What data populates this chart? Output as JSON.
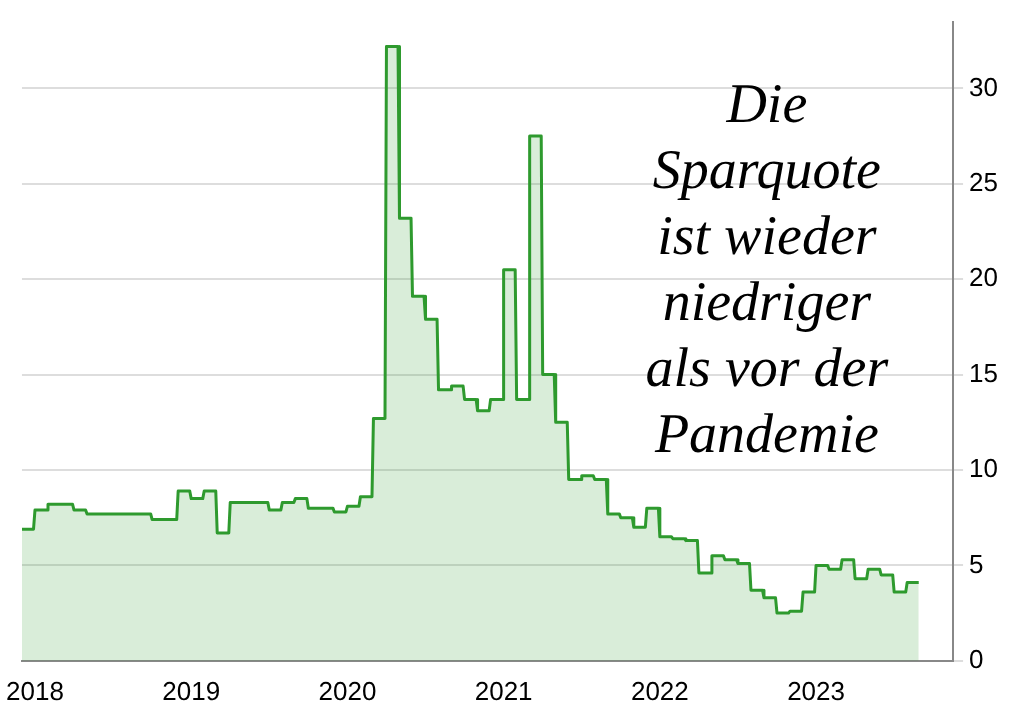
{
  "chart_data": {
    "type": "area",
    "x": [
      "2017-12-01",
      "2017-12-28",
      "2018-01-01",
      "2018-01-28",
      "2018-02-01",
      "2018-02-28",
      "2018-03-01",
      "2018-03-28",
      "2018-04-01",
      "2018-04-28",
      "2018-05-01",
      "2018-05-28",
      "2018-06-01",
      "2018-06-28",
      "2018-07-01",
      "2018-07-28",
      "2018-08-01",
      "2018-08-28",
      "2018-09-01",
      "2018-09-28",
      "2018-10-01",
      "2018-10-28",
      "2018-11-01",
      "2018-11-28",
      "2018-12-01",
      "2018-12-28",
      "2019-01-01",
      "2019-01-28",
      "2019-02-01",
      "2019-02-28",
      "2019-03-01",
      "2019-03-28",
      "2019-04-01",
      "2019-04-28",
      "2019-05-01",
      "2019-05-28",
      "2019-06-01",
      "2019-06-28",
      "2019-07-01",
      "2019-07-28",
      "2019-08-01",
      "2019-08-28",
      "2019-09-01",
      "2019-09-28",
      "2019-10-01",
      "2019-10-28",
      "2019-11-01",
      "2019-11-28",
      "2019-12-01",
      "2019-12-28",
      "2020-01-01",
      "2020-01-28",
      "2020-02-01",
      "2020-02-28",
      "2020-03-01",
      "2020-03-28",
      "2020-04-01",
      "2020-04-28",
      "2020-05-01",
      "2020-05-28",
      "2020-06-01",
      "2020-06-28",
      "2020-07-01",
      "2020-07-28",
      "2020-08-01",
      "2020-08-28",
      "2020-09-01",
      "2020-09-28",
      "2020-10-01",
      "2020-10-28",
      "2020-11-01",
      "2020-11-28",
      "2020-12-01",
      "2020-12-28",
      "2021-01-01",
      "2021-01-28",
      "2021-02-01",
      "2021-02-28",
      "2021-03-01",
      "2021-03-28",
      "2021-04-01",
      "2021-04-28",
      "2021-05-01",
      "2021-05-28",
      "2021-06-01",
      "2021-06-28",
      "2021-07-01",
      "2021-07-28",
      "2021-08-01",
      "2021-08-28",
      "2021-09-01",
      "2021-09-28",
      "2021-10-01",
      "2021-10-28",
      "2021-11-01",
      "2021-11-28",
      "2021-12-01",
      "2021-12-28",
      "2022-01-01",
      "2022-01-28",
      "2022-02-01",
      "2022-02-28",
      "2022-03-01",
      "2022-03-28",
      "2022-04-01",
      "2022-04-28",
      "2022-05-01",
      "2022-05-28",
      "2022-06-01",
      "2022-06-28",
      "2022-07-01",
      "2022-07-28",
      "2022-08-01",
      "2022-08-28",
      "2022-09-01",
      "2022-09-28",
      "2022-10-01",
      "2022-10-28",
      "2022-11-01",
      "2022-11-28",
      "2022-12-01",
      "2022-12-28",
      "2023-01-01",
      "2023-01-28",
      "2023-02-01",
      "2023-02-28",
      "2023-03-01",
      "2023-03-28",
      "2023-04-01",
      "2023-04-28",
      "2023-05-01",
      "2023-05-28",
      "2023-06-01",
      "2023-06-28",
      "2023-07-01",
      "2023-07-28",
      "2023-08-01",
      "2023-08-28"
    ],
    "series": [
      {
        "color": "#2e9a2e",
        "values": [
          6.9,
          6.9,
          7.9,
          7.9,
          8.2,
          8.2,
          8.2,
          8.2,
          7.9,
          7.9,
          7.7,
          7.7,
          7.7,
          7.7,
          7.7,
          7.7,
          7.7,
          7.7,
          7.7,
          7.7,
          7.4,
          7.4,
          7.4,
          7.4,
          8.9,
          8.9,
          8.5,
          8.5,
          8.9,
          8.9,
          6.7,
          6.7,
          8.3,
          8.3,
          8.3,
          8.3,
          8.3,
          8.3,
          7.9,
          7.9,
          8.3,
          8.3,
          8.5,
          8.5,
          8.0,
          8.0,
          8.0,
          8.0,
          7.8,
          7.8,
          8.1,
          8.1,
          8.6,
          8.6,
          12.7,
          12.7,
          32.2,
          32.2,
          23.2,
          23.2,
          19.1,
          19.1,
          17.9,
          17.9,
          14.2,
          14.2,
          14.4,
          14.4,
          13.7,
          13.7,
          13.1,
          13.1,
          13.7,
          13.7,
          20.5,
          20.5,
          13.7,
          13.7,
          27.5,
          27.5,
          15.0,
          15.0,
          12.5,
          12.5,
          9.5,
          9.5,
          9.7,
          9.7,
          9.5,
          9.5,
          7.7,
          7.7,
          7.5,
          7.5,
          7.0,
          7.0,
          8.0,
          8.0,
          6.5,
          6.5,
          6.4,
          6.4,
          6.3,
          6.3,
          4.6,
          4.6,
          5.5,
          5.5,
          5.3,
          5.3,
          5.1,
          5.1,
          3.7,
          3.7,
          3.3,
          3.3,
          2.5,
          2.5,
          2.6,
          2.6,
          3.6,
          3.6,
          5.0,
          5.0,
          4.8,
          4.8,
          5.3,
          5.3,
          4.3,
          4.3,
          4.8,
          4.8,
          4.5,
          4.5,
          3.6,
          3.6,
          4.1,
          4.1
        ]
      }
    ],
    "xlim": [
      "2017-12-01",
      "2023-11-17"
    ],
    "xticks": [
      {
        "value": "2018",
        "label": "2018"
      },
      {
        "value": "2019",
        "label": "2019"
      },
      {
        "value": "2020",
        "label": "2020"
      },
      {
        "value": "2021",
        "label": "2021"
      },
      {
        "value": "2022",
        "label": "2022"
      },
      {
        "value": "2023",
        "label": "2023"
      }
    ],
    "ylim": [
      0,
      33.5
    ],
    "yticks": [
      0,
      5,
      10,
      15,
      20,
      25,
      30
    ],
    "grid": "y",
    "annotations": [
      "Die\nSparquote\nist wieder\nniedriger\nals vor der\nPandemie"
    ]
  }
}
